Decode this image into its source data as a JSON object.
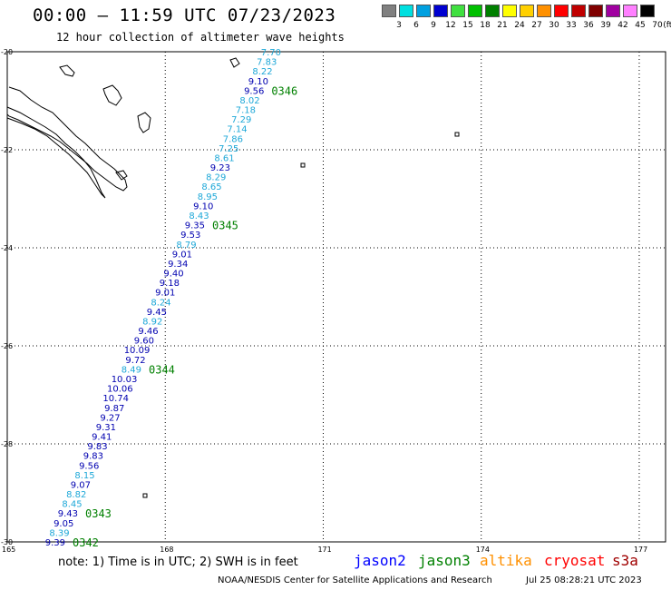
{
  "header": {
    "title": "00:00 – 11:59 UTC 07/23/2023",
    "subtitle": "12 hour collection of altimeter wave heights"
  },
  "colorbar": {
    "labels": [
      "3",
      "6",
      "9",
      "12",
      "15",
      "18",
      "21",
      "24",
      "27",
      "30",
      "33",
      "36",
      "39",
      "42",
      "45",
      "70"
    ],
    "unit": "(ft)",
    "colors": [
      "#808080",
      "#00e0e0",
      "#00a0e0",
      "#0000d0",
      "#40e040",
      "#00c000",
      "#008000",
      "#ffff00",
      "#ffd000",
      "#ff9000",
      "#ff0000",
      "#c00000",
      "#800000",
      "#a000a0",
      "#ff80ff",
      "#000000"
    ]
  },
  "map": {
    "lon_range": [
      165,
      177.5
    ],
    "lat_range": [
      -30,
      -20
    ],
    "lon_ticks": [
      "165",
      "168",
      "171",
      "174",
      "177"
    ],
    "lat_ticks": [
      "-20",
      "-22",
      "-24",
      "-26",
      "-28",
      "-30"
    ],
    "colors": {
      "light": "#1ea8d8",
      "dark": "#0000b0",
      "time": "#008000",
      "grid": "#000000"
    },
    "swh_points": [
      {
        "v": "7.70",
        "c": "light"
      },
      {
        "v": "7.83",
        "c": "light"
      },
      {
        "v": "8.22",
        "c": "light"
      },
      {
        "v": "9.10",
        "c": "dark"
      },
      {
        "v": "9.56",
        "c": "dark"
      },
      {
        "v": "8.02",
        "c": "light"
      },
      {
        "v": "7.18",
        "c": "light"
      },
      {
        "v": "7.29",
        "c": "light"
      },
      {
        "v": "7.14",
        "c": "light"
      },
      {
        "v": "7.86",
        "c": "light"
      },
      {
        "v": "7.25",
        "c": "light"
      },
      {
        "v": "8.61",
        "c": "light"
      },
      {
        "v": "9.23",
        "c": "dark"
      },
      {
        "v": "8.29",
        "c": "light"
      },
      {
        "v": "8.65",
        "c": "light"
      },
      {
        "v": "8.95",
        "c": "light"
      },
      {
        "v": "9.10",
        "c": "dark"
      },
      {
        "v": "8.43",
        "c": "light"
      },
      {
        "v": "9.35",
        "c": "dark"
      },
      {
        "v": "9.53",
        "c": "dark"
      },
      {
        "v": "8.79",
        "c": "light"
      },
      {
        "v": "9.01",
        "c": "dark"
      },
      {
        "v": "9.34",
        "c": "dark"
      },
      {
        "v": "9.40",
        "c": "dark"
      },
      {
        "v": "9.18",
        "c": "dark"
      },
      {
        "v": "9.01",
        "c": "dark"
      },
      {
        "v": "8.24",
        "c": "light"
      },
      {
        "v": "9.45",
        "c": "dark"
      },
      {
        "v": "8.92",
        "c": "light"
      },
      {
        "v": "9.46",
        "c": "dark"
      },
      {
        "v": "9.60",
        "c": "dark"
      },
      {
        "v": "10.09",
        "c": "dark"
      },
      {
        "v": "9.72",
        "c": "dark"
      },
      {
        "v": "8.49",
        "c": "light"
      },
      {
        "v": "10.03",
        "c": "dark"
      },
      {
        "v": "10.06",
        "c": "dark"
      },
      {
        "v": "10.74",
        "c": "dark"
      },
      {
        "v": "9.87",
        "c": "dark"
      },
      {
        "v": "9.27",
        "c": "dark"
      },
      {
        "v": "9.31",
        "c": "dark"
      },
      {
        "v": "9.41",
        "c": "dark"
      },
      {
        "v": "9.83",
        "c": "dark"
      },
      {
        "v": "9.83",
        "c": "dark"
      },
      {
        "v": "9.56",
        "c": "dark"
      },
      {
        "v": "8.15",
        "c": "light"
      },
      {
        "v": "9.07",
        "c": "dark"
      },
      {
        "v": "8.82",
        "c": "light"
      },
      {
        "v": "8.45",
        "c": "light"
      },
      {
        "v": "9.43",
        "c": "dark"
      },
      {
        "v": "9.05",
        "c": "dark"
      },
      {
        "v": "8.39",
        "c": "light"
      },
      {
        "v": "9.39",
        "c": "dark"
      }
    ],
    "time_labels": [
      "0346",
      "0345",
      "0344",
      "0343",
      "0342"
    ]
  },
  "footer": {
    "note": "note: 1) Time is in UTC; 2) SWH is in feet",
    "satellites": [
      {
        "name": "jason2",
        "color": "#0000ff"
      },
      {
        "name": "jason3",
        "color": "#008000"
      },
      {
        "name": "altika",
        "color": "#ff9000"
      },
      {
        "name": "cryosat",
        "color": "#ff0000"
      },
      {
        "name": "s3a",
        "color": "#a00000"
      }
    ],
    "credit": "NOAA/NESDIS Center for Satellite Applications and Research",
    "credit_date": "Jul 25 08:28:21 UTC 2023"
  }
}
